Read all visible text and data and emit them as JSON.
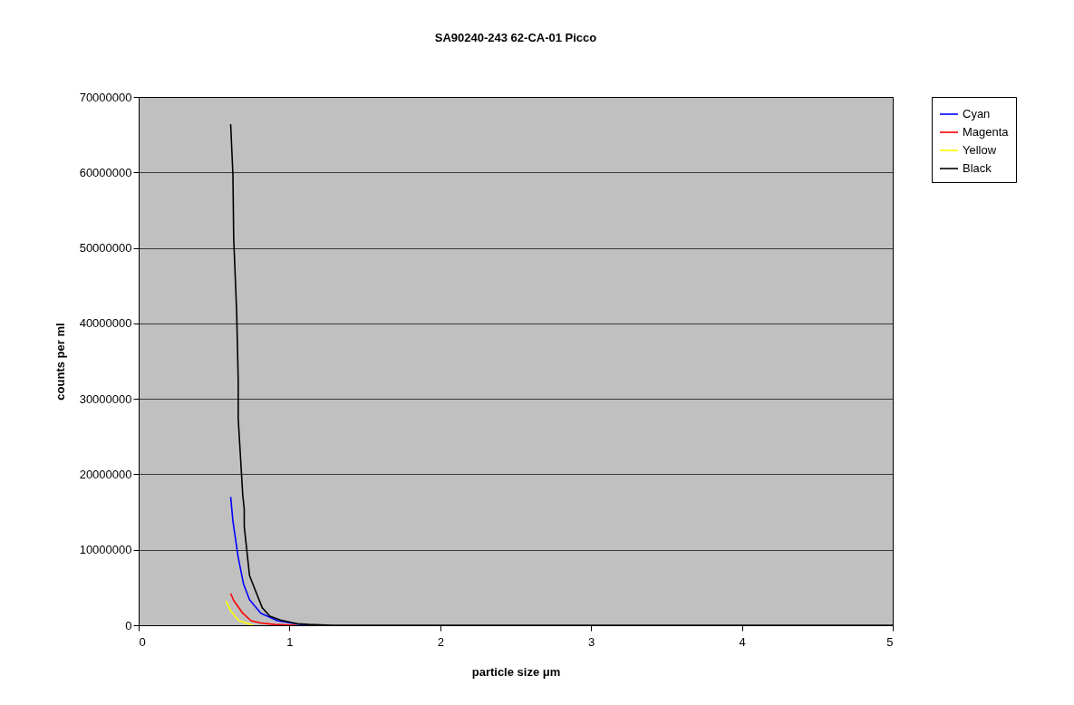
{
  "chart_data": {
    "type": "line",
    "title": "SA90240-243 62-CA-01 Picco",
    "xlabel": "particle size μm",
    "ylabel": "counts per ml",
    "xlim": [
      0,
      5
    ],
    "xticks": [
      0,
      1,
      2,
      3,
      4,
      5
    ],
    "ylim": [
      0,
      70000000
    ],
    "yticks": [
      0,
      10000000,
      20000000,
      30000000,
      40000000,
      50000000,
      60000000,
      70000000
    ],
    "grid": "y",
    "legend": "right",
    "marker": "none",
    "line_style": "solid",
    "series": [
      {
        "name": "Cyan",
        "color": "#0000ff",
        "x": [
          0.61,
          0.625,
          0.66,
          0.695,
          0.735,
          0.81,
          0.92,
          1.04,
          1.13
        ],
        "values": [
          17000000,
          13800000,
          9000000,
          5500000,
          3400000,
          1600000,
          600000,
          200000,
          0
        ]
      },
      {
        "name": "Magenta",
        "color": "#ff0000",
        "x": [
          0.61,
          0.63,
          0.69,
          0.745,
          0.81,
          0.9,
          1.04
        ],
        "values": [
          4200000,
          3300000,
          1600000,
          600000,
          300000,
          100000,
          0
        ]
      },
      {
        "name": "Yellow",
        "color": "#ffff00",
        "x": [
          0.58,
          0.61,
          0.665,
          0.76
        ],
        "values": [
          3200000,
          1900000,
          600000,
          0
        ]
      },
      {
        "name": "Black",
        "color": "#000000",
        "x": [
          0.61,
          0.625,
          0.63,
          0.65,
          0.66,
          0.66,
          0.69,
          0.7,
          0.7,
          0.735,
          0.77,
          0.82,
          0.87,
          0.94,
          1.05,
          1.13,
          1.28,
          2,
          3,
          4,
          5
        ],
        "values": [
          66400000,
          59700000,
          51400000,
          41300000,
          32500000,
          27400000,
          17300000,
          15400000,
          13100000,
          6600000,
          4800000,
          2300000,
          1200000,
          700000,
          200000,
          100000,
          0,
          0,
          0,
          0,
          0
        ]
      }
    ]
  }
}
